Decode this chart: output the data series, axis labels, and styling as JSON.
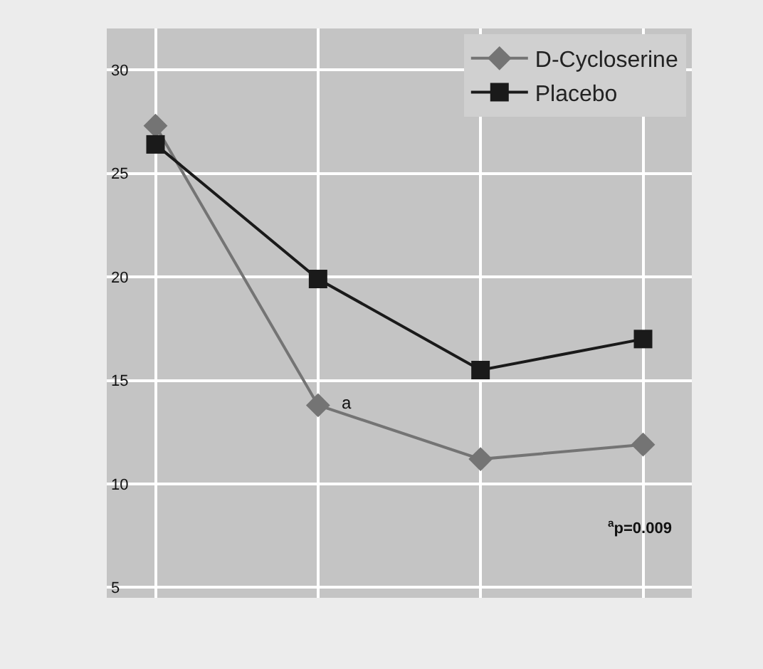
{
  "chart_data": {
    "type": "line",
    "categories": [
      null,
      null,
      null,
      null
    ],
    "series": [
      {
        "name": "D-Cycloserine",
        "color": "#747474",
        "marker": "diamond",
        "values": [
          27.3,
          13.8,
          11.2,
          11.9
        ]
      },
      {
        "name": "Placebo",
        "color": "#1a1a1a",
        "marker": "square",
        "values": [
          26.4,
          19.9,
          15.5,
          17.0
        ]
      }
    ],
    "ylim": [
      4.5,
      32
    ],
    "yticks": [
      5,
      10,
      15,
      20,
      25,
      30
    ],
    "grid": true,
    "legend": "top right",
    "tick_labels": "y",
    "annotations": [
      "a",
      "$^{a}$p=0.009"
    ]
  }
}
